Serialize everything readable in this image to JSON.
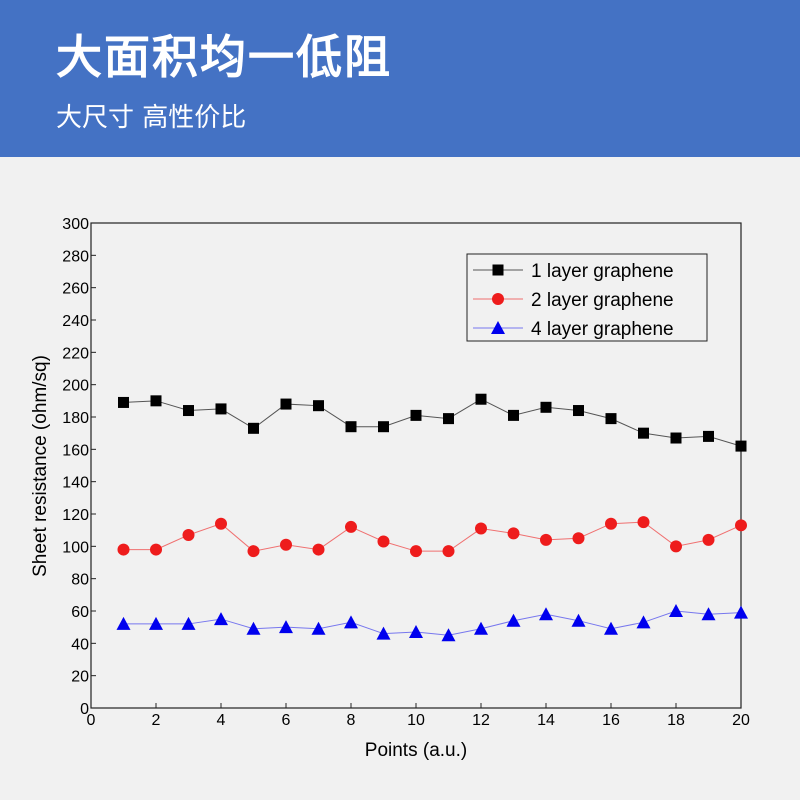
{
  "header": {
    "title": "大面积均一低阻",
    "subtitle": "大尺寸 高性价比",
    "background_color": "#4472c4",
    "text_color": "#ffffff"
  },
  "chart_data": {
    "type": "line",
    "title": "",
    "xlabel": "Points (a.u.)",
    "ylabel": "Sheet resistance (ohm/sq)",
    "xlim": [
      0,
      20
    ],
    "ylim": [
      0,
      300
    ],
    "x_ticks": [
      0,
      2,
      4,
      6,
      8,
      10,
      12,
      14,
      16,
      18,
      20
    ],
    "y_ticks": [
      0,
      20,
      40,
      60,
      80,
      100,
      120,
      140,
      160,
      180,
      200,
      220,
      240,
      260,
      280,
      300
    ],
    "grid": false,
    "legend_position": "top-right",
    "x": [
      1,
      2,
      3,
      4,
      5,
      6,
      7,
      8,
      9,
      10,
      11,
      12,
      13,
      14,
      15,
      16,
      17,
      18,
      19,
      20
    ],
    "series": [
      {
        "name": "1 layer graphene",
        "marker": "square",
        "marker_color": "#000000",
        "line_color": "#555555",
        "values": [
          189,
          190,
          184,
          185,
          173,
          188,
          187,
          174,
          174,
          181,
          179,
          191,
          181,
          186,
          184,
          179,
          170,
          167,
          168,
          162
        ]
      },
      {
        "name": "2 layer graphene",
        "marker": "circle",
        "marker_color": "#ee1c1c",
        "line_color": "#f07070",
        "values": [
          98,
          98,
          107,
          114,
          97,
          101,
          98,
          112,
          103,
          97,
          97,
          111,
          108,
          104,
          105,
          114,
          115,
          100,
          104,
          113
        ]
      },
      {
        "name": "4 layer graphene",
        "marker": "triangle",
        "marker_color": "#0000ee",
        "line_color": "#7777ee",
        "values": [
          52,
          52,
          52,
          55,
          49,
          50,
          49,
          53,
          46,
          47,
          45,
          49,
          54,
          58,
          54,
          49,
          53,
          60,
          58,
          59
        ]
      }
    ]
  }
}
